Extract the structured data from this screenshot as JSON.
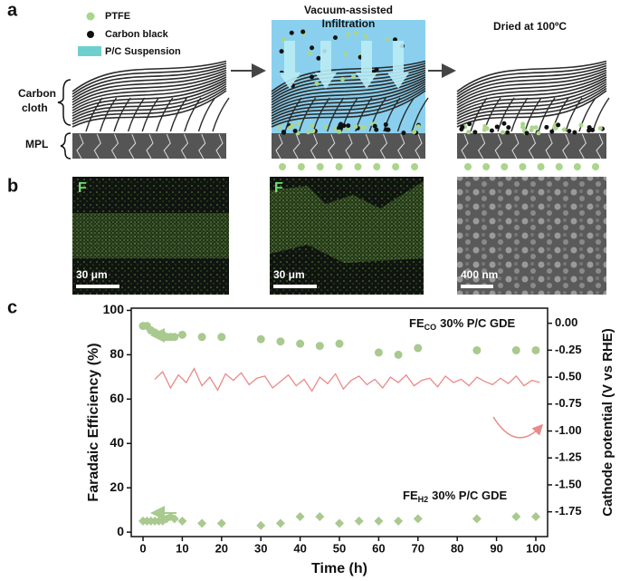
{
  "panel_a": {
    "label": "a",
    "legend": [
      "PTFE",
      "Carbon black",
      "P/C Suspension"
    ],
    "side_labels": {
      "cloth": [
        "Carbon",
        "cloth"
      ],
      "mpl": "MPL"
    },
    "step2": [
      "Vacuum-assisted",
      "Infiltration"
    ],
    "step3": "Dried at 100ºC"
  },
  "panel_b": {
    "label": "b",
    "images": [
      {
        "element": "F",
        "scale": "30 μm"
      },
      {
        "element": "F",
        "scale": "30 μm"
      },
      {
        "scale": "400 nm"
      }
    ]
  },
  "panel_c": {
    "label": "c"
  },
  "chart_data": {
    "type": "combo",
    "xlabel": "Time (h)",
    "ylabel": "Faradaic Efficiency (%)",
    "y2label": "Cathode potential (V vs RHE)",
    "xlim": [
      -3,
      103
    ],
    "xticks": [
      0,
      10,
      20,
      30,
      40,
      50,
      60,
      70,
      80,
      90,
      100
    ],
    "ylim": [
      -2,
      101
    ],
    "yticks": [
      0,
      20,
      40,
      60,
      80,
      100
    ],
    "y2lim": [
      -1.98,
      0.14
    ],
    "y2ticks": [
      {
        "value": 0,
        "label": "0.00"
      },
      -0.25,
      {
        "value": -0.5,
        "label": "-0.50"
      },
      -0.75,
      {
        "value": -1,
        "label": "-1.00"
      },
      -1.25,
      {
        "value": -1.5,
        "label": "-1.50"
      },
      -1.75
    ],
    "annotations": [
      {
        "main": "FE",
        "sub": "CO",
        "tail": "30% P/C GDE"
      },
      {
        "main": "FE",
        "sub": "H2",
        "tail": "30% P/C GDE"
      }
    ],
    "series": [
      {
        "marker": "circle",
        "color": "#a9c98f",
        "x": [
          0,
          1,
          2,
          3,
          4,
          5,
          6,
          7,
          8,
          10,
          15,
          20,
          30,
          35,
          40,
          45,
          50,
          60,
          65,
          70,
          85,
          95,
          100
        ],
        "values": [
          93,
          93,
          91,
          90,
          89,
          89,
          88,
          88,
          88,
          89,
          88,
          88,
          87,
          86,
          85,
          84,
          85,
          81,
          80,
          83,
          82,
          82,
          82
        ]
      },
      {
        "marker": "diamond",
        "color": "#a9c98f",
        "x": [
          0,
          1,
          2,
          3,
          4,
          5,
          6,
          7,
          8,
          10,
          15,
          20,
          30,
          35,
          40,
          45,
          50,
          55,
          60,
          65,
          70,
          85,
          95,
          100
        ],
        "values": [
          5,
          5,
          5,
          5,
          5,
          5,
          6,
          7,
          6,
          5,
          4,
          4,
          3,
          4,
          7,
          7,
          4,
          5,
          5,
          5,
          6,
          6,
          7,
          7
        ]
      },
      {
        "marker": "none",
        "axis": "y2",
        "color": "#e98a88",
        "x": [
          3,
          5,
          7,
          9,
          11,
          13,
          15,
          17,
          19,
          21,
          23,
          25,
          27,
          29,
          31,
          33,
          35,
          37,
          39,
          41,
          43,
          45,
          47,
          49,
          51,
          53,
          55,
          57,
          59,
          61,
          63,
          65,
          67,
          69,
          71,
          73,
          75,
          77,
          79,
          81,
          83,
          85,
          87,
          89,
          91,
          93,
          95,
          97,
          99,
          101
        ],
        "values": [
          -0.52,
          -0.45,
          -0.6,
          -0.48,
          -0.55,
          -0.42,
          -0.58,
          -0.5,
          -0.62,
          -0.47,
          -0.53,
          -0.46,
          -0.57,
          -0.51,
          -0.49,
          -0.6,
          -0.54,
          -0.48,
          -0.58,
          -0.52,
          -0.63,
          -0.5,
          -0.56,
          -0.47,
          -0.61,
          -0.53,
          -0.49,
          -0.57,
          -0.52,
          -0.6,
          -0.5,
          -0.55,
          -0.48,
          -0.58,
          -0.53,
          -0.51,
          -0.59,
          -0.49,
          -0.55,
          -0.52,
          -0.58,
          -0.5,
          -0.54,
          -0.57,
          -0.51,
          -0.56,
          -0.49,
          -0.58,
          -0.53,
          -0.55
        ]
      }
    ]
  }
}
